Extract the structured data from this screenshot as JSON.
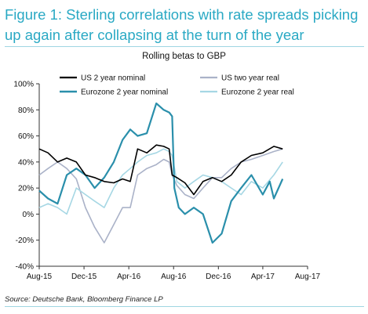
{
  "figure": {
    "title": "Figure 1: Sterling correlations with rate spreads picking up again after collapsing at the turn of the year",
    "source": "Source: Deutsche Bank, Bloomberg Finance LP",
    "accent_color": "#2aa9c4"
  },
  "chart_data": {
    "type": "line",
    "title": "Rolling betas to GBP",
    "xlabel": "",
    "ylabel": "",
    "x_ticks": [
      "Aug-15",
      "Dec-15",
      "Apr-16",
      "Aug-16",
      "Dec-16",
      "Apr-17",
      "Aug-17"
    ],
    "y_ticks": [
      "-40%",
      "-20%",
      "0%",
      "20%",
      "40%",
      "60%",
      "80%",
      "100%"
    ],
    "ylim": [
      -40,
      100
    ],
    "xlim": [
      "2015-08-01",
      "2017-08-01"
    ],
    "grid": false,
    "legend_position": "top",
    "series": [
      {
        "name": "US 2 year nominal",
        "color": "#000000",
        "points": [
          [
            "2015-08-01",
            50
          ],
          [
            "2015-08-25",
            47
          ],
          [
            "2015-09-20",
            40
          ],
          [
            "2015-10-15",
            43
          ],
          [
            "2015-11-10",
            40
          ],
          [
            "2015-12-05",
            30
          ],
          [
            "2015-12-30",
            28
          ],
          [
            "2016-01-25",
            25
          ],
          [
            "2016-02-20",
            24
          ],
          [
            "2016-03-15",
            27
          ],
          [
            "2016-04-05",
            25
          ],
          [
            "2016-04-25",
            50
          ],
          [
            "2016-05-20",
            47
          ],
          [
            "2016-06-15",
            53
          ],
          [
            "2016-07-05",
            52
          ],
          [
            "2016-07-20",
            50
          ],
          [
            "2016-07-28",
            30
          ],
          [
            "2016-08-10",
            28
          ],
          [
            "2016-09-01",
            24
          ],
          [
            "2016-09-25",
            15
          ],
          [
            "2016-10-20",
            25
          ],
          [
            "2016-11-15",
            28
          ],
          [
            "2016-12-10",
            25
          ],
          [
            "2017-01-05",
            30
          ],
          [
            "2017-02-01",
            40
          ],
          [
            "2017-03-01",
            45
          ],
          [
            "2017-04-01",
            47
          ],
          [
            "2017-05-01",
            52
          ],
          [
            "2017-05-25",
            50
          ]
        ]
      },
      {
        "name": "US two year real",
        "color": "#aab2c8",
        "points": [
          [
            "2015-08-01",
            30
          ],
          [
            "2015-08-25",
            35
          ],
          [
            "2015-09-20",
            40
          ],
          [
            "2015-10-15",
            35
          ],
          [
            "2015-11-10",
            27
          ],
          [
            "2015-12-05",
            5
          ],
          [
            "2015-12-30",
            -10
          ],
          [
            "2016-01-25",
            -22
          ],
          [
            "2016-02-20",
            -8
          ],
          [
            "2016-03-15",
            5
          ],
          [
            "2016-04-05",
            5
          ],
          [
            "2016-04-25",
            30
          ],
          [
            "2016-05-20",
            35
          ],
          [
            "2016-06-15",
            38
          ],
          [
            "2016-07-05",
            42
          ],
          [
            "2016-07-20",
            40
          ],
          [
            "2016-07-28",
            30
          ],
          [
            "2016-08-10",
            22
          ],
          [
            "2016-09-01",
            15
          ],
          [
            "2016-09-25",
            12
          ],
          [
            "2016-10-20",
            20
          ],
          [
            "2016-11-15",
            28
          ],
          [
            "2016-12-10",
            28
          ],
          [
            "2017-01-05",
            35
          ],
          [
            "2017-02-01",
            40
          ],
          [
            "2017-03-01",
            42
          ],
          [
            "2017-04-01",
            45
          ],
          [
            "2017-05-01",
            48
          ],
          [
            "2017-05-25",
            50
          ]
        ]
      },
      {
        "name": "Eurozone 2 year nominal",
        "color": "#2a8fab",
        "points": [
          [
            "2015-08-01",
            18
          ],
          [
            "2015-08-25",
            12
          ],
          [
            "2015-09-20",
            8
          ],
          [
            "2015-10-15",
            30
          ],
          [
            "2015-11-10",
            35
          ],
          [
            "2015-12-05",
            30
          ],
          [
            "2015-12-30",
            20
          ],
          [
            "2016-01-25",
            28
          ],
          [
            "2016-02-20",
            40
          ],
          [
            "2016-03-15",
            57
          ],
          [
            "2016-04-05",
            65
          ],
          [
            "2016-04-25",
            60
          ],
          [
            "2016-05-20",
            62
          ],
          [
            "2016-06-15",
            85
          ],
          [
            "2016-07-05",
            80
          ],
          [
            "2016-07-20",
            78
          ],
          [
            "2016-07-28",
            75
          ],
          [
            "2016-08-03",
            20
          ],
          [
            "2016-08-15",
            5
          ],
          [
            "2016-09-01",
            0
          ],
          [
            "2016-09-25",
            5
          ],
          [
            "2016-10-20",
            0
          ],
          [
            "2016-11-15",
            -22
          ],
          [
            "2016-12-10",
            -15
          ],
          [
            "2017-01-05",
            10
          ],
          [
            "2017-02-01",
            20
          ],
          [
            "2017-03-01",
            30
          ],
          [
            "2017-04-01",
            15
          ],
          [
            "2017-04-20",
            25
          ],
          [
            "2017-05-01",
            12
          ],
          [
            "2017-05-25",
            27
          ]
        ]
      },
      {
        "name": "Eurozone 2 year real",
        "color": "#a6d7e4",
        "points": [
          [
            "2015-08-01",
            5
          ],
          [
            "2015-08-25",
            8
          ],
          [
            "2015-09-20",
            5
          ],
          [
            "2015-10-15",
            0
          ],
          [
            "2015-11-10",
            20
          ],
          [
            "2015-12-05",
            15
          ],
          [
            "2015-12-30",
            10
          ],
          [
            "2016-01-25",
            5
          ],
          [
            "2016-02-20",
            20
          ],
          [
            "2016-03-15",
            30
          ],
          [
            "2016-04-05",
            35
          ],
          [
            "2016-04-25",
            40
          ],
          [
            "2016-05-20",
            45
          ],
          [
            "2016-06-15",
            47
          ],
          [
            "2016-07-05",
            50
          ],
          [
            "2016-07-20",
            48
          ],
          [
            "2016-07-28",
            45
          ],
          [
            "2016-08-10",
            25
          ],
          [
            "2016-09-01",
            20
          ],
          [
            "2016-09-25",
            25
          ],
          [
            "2016-10-20",
            30
          ],
          [
            "2016-11-15",
            28
          ],
          [
            "2016-12-10",
            25
          ],
          [
            "2017-01-05",
            20
          ],
          [
            "2017-02-01",
            15
          ],
          [
            "2017-03-01",
            25
          ],
          [
            "2017-04-01",
            20
          ],
          [
            "2017-05-01",
            30
          ],
          [
            "2017-05-25",
            40
          ]
        ]
      }
    ]
  }
}
